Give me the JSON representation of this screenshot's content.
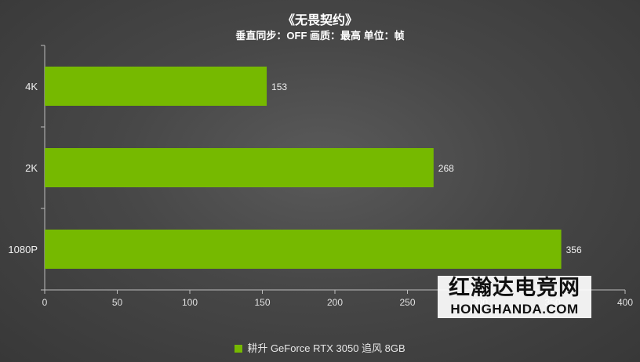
{
  "chart_data": {
    "type": "bar",
    "orientation": "horizontal",
    "title": "《无畏契约》",
    "subtitle": "垂直同步：OFF  画质：最高   单位：帧",
    "categories": [
      "4K",
      "2K",
      "1080P"
    ],
    "series": [
      {
        "name": "耕升 GeForce RTX 3050 追风 8GB",
        "values": [
          153,
          268,
          356
        ],
        "color": "#76b900"
      }
    ],
    "xlim": [
      0,
      400
    ],
    "xticks": [
      0,
      50,
      100,
      150,
      200,
      250,
      300,
      350,
      400
    ],
    "grid": false,
    "legend_position": "bottom"
  },
  "watermark": {
    "cn": "红瀚达电竞网",
    "en": "HONGHANDA.COM"
  }
}
